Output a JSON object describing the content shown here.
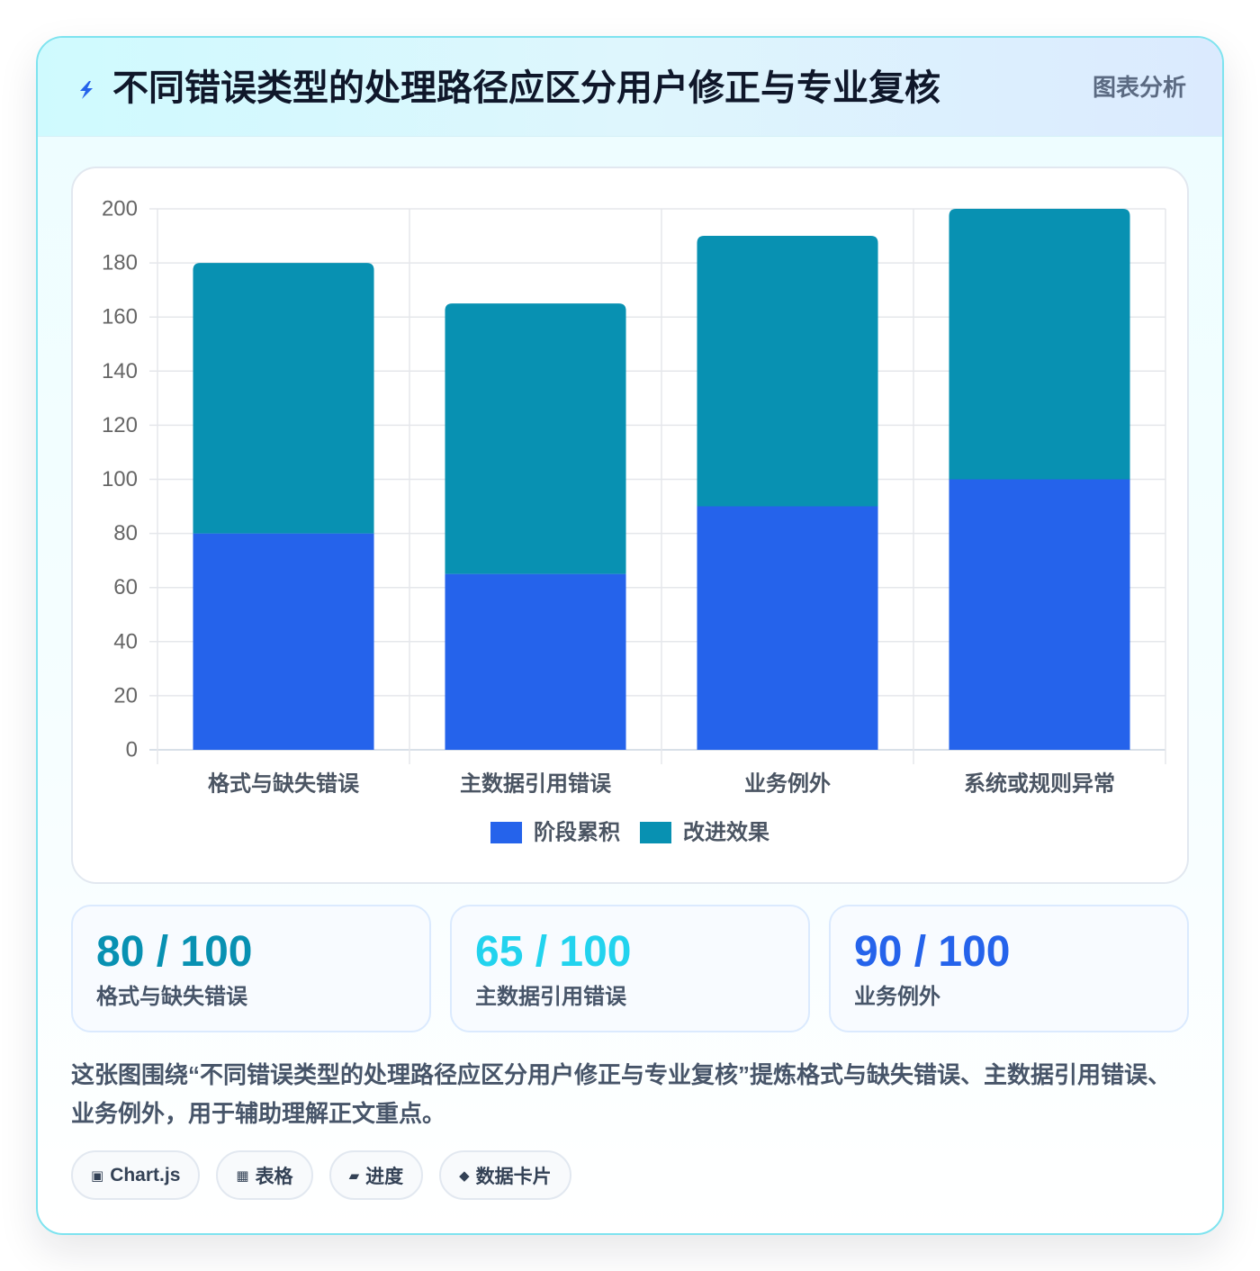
{
  "header": {
    "icon": "lightning-icon",
    "icon_color": "#2563eb",
    "title": "不同错误类型的处理路径应区分用户修正与专业复核",
    "badge": "图表分析"
  },
  "chart_data": {
    "type": "bar",
    "stacked": true,
    "categories": [
      "格式与缺失错误",
      "主数据引用错误",
      "业务例外",
      "系统或规则异常"
    ],
    "series": [
      {
        "name": "阶段累积",
        "values": [
          80,
          65,
          90,
          100
        ],
        "color": "#2563eb"
      },
      {
        "name": "改进效果",
        "values": [
          100,
          100,
          100,
          100
        ],
        "color": "#0891b2"
      }
    ],
    "ylim": [
      0,
      200
    ],
    "yticks": [
      0,
      20,
      40,
      60,
      80,
      100,
      120,
      140,
      160,
      180,
      200
    ],
    "grid": true,
    "legend": "bottom"
  },
  "stats": [
    {
      "value": "80 / 100",
      "label": "格式与缺失错误",
      "color": "#0891b2"
    },
    {
      "value": "65 / 100",
      "label": "主数据引用错误",
      "color": "#22d3ee"
    },
    {
      "value": "90 / 100",
      "label": "业务例外",
      "color": "#2563eb"
    }
  ],
  "description": "这张图围绕“不同错误类型的处理路径应区分用户修正与专业复核”提炼格式与缺失错误、主数据引用错误、业务例外，用于辅助理解正文重点。",
  "tags": [
    {
      "icon": "chart-icon",
      "glyph": "▣",
      "label": "Chart.js"
    },
    {
      "icon": "table-icon",
      "glyph": "▦",
      "label": "表格"
    },
    {
      "icon": "progress-icon",
      "glyph": "▰",
      "label": "进度"
    },
    {
      "icon": "card-icon",
      "glyph": "◆",
      "label": "数据卡片"
    }
  ]
}
